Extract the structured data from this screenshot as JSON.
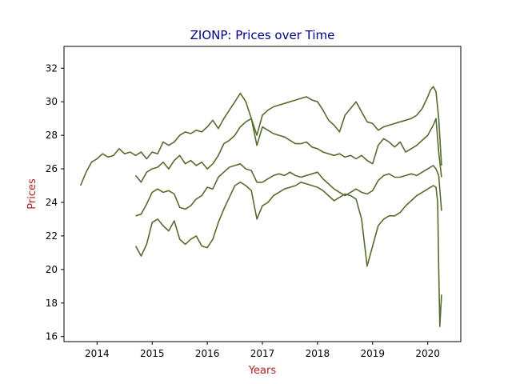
{
  "chart_data": {
    "type": "line",
    "title": "ZIONP: Prices over Time",
    "xlabel": "Years",
    "ylabel": "Prices",
    "xlim": [
      2013.4,
      2020.6
    ],
    "ylim": [
      15.7,
      33.3
    ],
    "xticks": [
      2014,
      2015,
      2016,
      2017,
      2018,
      2019,
      2020
    ],
    "yticks": [
      16,
      18,
      20,
      22,
      24,
      26,
      28,
      30,
      32
    ],
    "grid": false,
    "legend": "none",
    "colors": {
      "line": "#556b2f",
      "title": "#00008b",
      "axis_label": "#b22222"
    },
    "series": [
      {
        "points": [
          [
            2013.7,
            25.0
          ],
          [
            2013.8,
            25.8
          ],
          [
            2013.9,
            26.4
          ],
          [
            2014.0,
            26.6
          ],
          [
            2014.1,
            26.9
          ],
          [
            2014.2,
            26.7
          ],
          [
            2014.3,
            26.8
          ],
          [
            2014.4,
            27.2
          ],
          [
            2014.5,
            26.9
          ],
          [
            2014.6,
            27.0
          ],
          [
            2014.7,
            26.8
          ],
          [
            2014.8,
            27.0
          ],
          [
            2014.9,
            26.6
          ],
          [
            2015.0,
            27.0
          ],
          [
            2015.1,
            26.9
          ],
          [
            2015.2,
            27.6
          ],
          [
            2015.3,
            27.4
          ],
          [
            2015.4,
            27.6
          ],
          [
            2015.5,
            28.0
          ],
          [
            2015.6,
            28.2
          ],
          [
            2015.7,
            28.1
          ],
          [
            2015.8,
            28.3
          ],
          [
            2015.9,
            28.2
          ],
          [
            2016.0,
            28.5
          ],
          [
            2016.1,
            28.9
          ],
          [
            2016.2,
            28.4
          ],
          [
            2016.3,
            29.0
          ],
          [
            2016.4,
            29.5
          ],
          [
            2016.5,
            30.0
          ],
          [
            2016.6,
            30.5
          ],
          [
            2016.7,
            30.0
          ],
          [
            2016.8,
            29.0
          ],
          [
            2016.9,
            28.0
          ],
          [
            2017.0,
            29.2
          ],
          [
            2017.1,
            29.5
          ],
          [
            2017.2,
            29.7
          ],
          [
            2017.3,
            29.8
          ],
          [
            2017.4,
            29.9
          ],
          [
            2017.5,
            30.0
          ],
          [
            2017.6,
            30.1
          ],
          [
            2017.7,
            30.2
          ],
          [
            2017.8,
            30.3
          ],
          [
            2017.9,
            30.1
          ],
          [
            2018.0,
            30.0
          ],
          [
            2018.1,
            29.5
          ],
          [
            2018.2,
            28.9
          ],
          [
            2018.3,
            28.6
          ],
          [
            2018.4,
            28.2
          ],
          [
            2018.5,
            29.2
          ],
          [
            2018.6,
            29.6
          ],
          [
            2018.7,
            30.0
          ],
          [
            2018.8,
            29.4
          ],
          [
            2018.9,
            28.8
          ],
          [
            2019.0,
            28.7
          ],
          [
            2019.1,
            28.3
          ],
          [
            2019.2,
            28.5
          ],
          [
            2019.3,
            28.6
          ],
          [
            2019.4,
            28.7
          ],
          [
            2019.5,
            28.8
          ],
          [
            2019.6,
            28.9
          ],
          [
            2019.7,
            29.0
          ],
          [
            2019.8,
            29.2
          ],
          [
            2019.9,
            29.6
          ],
          [
            2020.0,
            30.3
          ],
          [
            2020.05,
            30.7
          ],
          [
            2020.1,
            30.9
          ],
          [
            2020.15,
            30.6
          ],
          [
            2020.2,
            29.0
          ],
          [
            2020.25,
            26.2
          ]
        ]
      },
      {
        "points": [
          [
            2014.7,
            25.6
          ],
          [
            2014.8,
            25.2
          ],
          [
            2014.9,
            25.8
          ],
          [
            2015.0,
            26.0
          ],
          [
            2015.1,
            26.1
          ],
          [
            2015.2,
            26.4
          ],
          [
            2015.3,
            26.0
          ],
          [
            2015.4,
            26.5
          ],
          [
            2015.5,
            26.8
          ],
          [
            2015.6,
            26.3
          ],
          [
            2015.7,
            26.5
          ],
          [
            2015.8,
            26.2
          ],
          [
            2015.9,
            26.4
          ],
          [
            2016.0,
            26.0
          ],
          [
            2016.1,
            26.3
          ],
          [
            2016.2,
            26.8
          ],
          [
            2016.3,
            27.5
          ],
          [
            2016.4,
            27.7
          ],
          [
            2016.5,
            28.0
          ],
          [
            2016.6,
            28.5
          ],
          [
            2016.7,
            28.8
          ],
          [
            2016.8,
            29.0
          ],
          [
            2016.9,
            27.4
          ],
          [
            2017.0,
            28.5
          ],
          [
            2017.1,
            28.3
          ],
          [
            2017.2,
            28.1
          ],
          [
            2017.3,
            28.0
          ],
          [
            2017.4,
            27.9
          ],
          [
            2017.5,
            27.7
          ],
          [
            2017.6,
            27.5
          ],
          [
            2017.7,
            27.5
          ],
          [
            2017.8,
            27.6
          ],
          [
            2017.9,
            27.3
          ],
          [
            2018.0,
            27.2
          ],
          [
            2018.1,
            27.0
          ],
          [
            2018.2,
            26.9
          ],
          [
            2018.3,
            26.8
          ],
          [
            2018.4,
            26.9
          ],
          [
            2018.5,
            26.7
          ],
          [
            2018.6,
            26.8
          ],
          [
            2018.7,
            26.6
          ],
          [
            2018.8,
            26.8
          ],
          [
            2018.9,
            26.5
          ],
          [
            2019.0,
            26.3
          ],
          [
            2019.1,
            27.4
          ],
          [
            2019.2,
            27.8
          ],
          [
            2019.3,
            27.6
          ],
          [
            2019.4,
            27.3
          ],
          [
            2019.5,
            27.6
          ],
          [
            2019.6,
            27.0
          ],
          [
            2019.7,
            27.2
          ],
          [
            2019.8,
            27.4
          ],
          [
            2019.9,
            27.7
          ],
          [
            2020.0,
            28.0
          ],
          [
            2020.05,
            28.3
          ],
          [
            2020.1,
            28.6
          ],
          [
            2020.15,
            29.0
          ],
          [
            2020.2,
            27.0
          ],
          [
            2020.25,
            25.5
          ]
        ]
      },
      {
        "points": [
          [
            2014.7,
            23.2
          ],
          [
            2014.8,
            23.3
          ],
          [
            2014.9,
            23.9
          ],
          [
            2015.0,
            24.6
          ],
          [
            2015.1,
            24.8
          ],
          [
            2015.2,
            24.6
          ],
          [
            2015.3,
            24.7
          ],
          [
            2015.4,
            24.5
          ],
          [
            2015.5,
            23.7
          ],
          [
            2015.6,
            23.6
          ],
          [
            2015.7,
            23.8
          ],
          [
            2015.8,
            24.2
          ],
          [
            2015.9,
            24.4
          ],
          [
            2016.0,
            24.9
          ],
          [
            2016.1,
            24.8
          ],
          [
            2016.2,
            25.5
          ],
          [
            2016.3,
            25.8
          ],
          [
            2016.4,
            26.1
          ],
          [
            2016.5,
            26.2
          ],
          [
            2016.6,
            26.3
          ],
          [
            2016.7,
            26.0
          ],
          [
            2016.8,
            25.9
          ],
          [
            2016.9,
            25.2
          ],
          [
            2017.0,
            25.2
          ],
          [
            2017.1,
            25.4
          ],
          [
            2017.2,
            25.6
          ],
          [
            2017.3,
            25.7
          ],
          [
            2017.4,
            25.6
          ],
          [
            2017.5,
            25.8
          ],
          [
            2017.6,
            25.6
          ],
          [
            2017.7,
            25.5
          ],
          [
            2017.8,
            25.6
          ],
          [
            2017.9,
            25.7
          ],
          [
            2018.0,
            25.8
          ],
          [
            2018.1,
            25.4
          ],
          [
            2018.2,
            25.1
          ],
          [
            2018.3,
            24.8
          ],
          [
            2018.4,
            24.6
          ],
          [
            2018.5,
            24.4
          ],
          [
            2018.6,
            24.6
          ],
          [
            2018.7,
            24.8
          ],
          [
            2018.8,
            24.6
          ],
          [
            2018.9,
            24.5
          ],
          [
            2019.0,
            24.7
          ],
          [
            2019.1,
            25.3
          ],
          [
            2019.2,
            25.6
          ],
          [
            2019.3,
            25.7
          ],
          [
            2019.4,
            25.5
          ],
          [
            2019.5,
            25.5
          ],
          [
            2019.6,
            25.6
          ],
          [
            2019.7,
            25.7
          ],
          [
            2019.8,
            25.6
          ],
          [
            2019.9,
            25.8
          ],
          [
            2020.0,
            26.0
          ],
          [
            2020.05,
            26.1
          ],
          [
            2020.1,
            26.2
          ],
          [
            2020.15,
            26.0
          ],
          [
            2020.2,
            25.6
          ],
          [
            2020.25,
            23.5
          ]
        ]
      },
      {
        "points": [
          [
            2014.7,
            21.4
          ],
          [
            2014.8,
            20.8
          ],
          [
            2014.9,
            21.5
          ],
          [
            2015.0,
            22.8
          ],
          [
            2015.1,
            23.0
          ],
          [
            2015.2,
            22.6
          ],
          [
            2015.3,
            22.3
          ],
          [
            2015.4,
            22.9
          ],
          [
            2015.5,
            21.8
          ],
          [
            2015.6,
            21.5
          ],
          [
            2015.7,
            21.8
          ],
          [
            2015.8,
            22.0
          ],
          [
            2015.9,
            21.4
          ],
          [
            2016.0,
            21.3
          ],
          [
            2016.1,
            21.8
          ],
          [
            2016.2,
            22.8
          ],
          [
            2016.3,
            23.6
          ],
          [
            2016.4,
            24.3
          ],
          [
            2016.5,
            25.0
          ],
          [
            2016.6,
            25.2
          ],
          [
            2016.7,
            25.0
          ],
          [
            2016.8,
            24.7
          ],
          [
            2016.9,
            23.0
          ],
          [
            2017.0,
            23.8
          ],
          [
            2017.1,
            24.0
          ],
          [
            2017.2,
            24.4
          ],
          [
            2017.3,
            24.6
          ],
          [
            2017.4,
            24.8
          ],
          [
            2017.5,
            24.9
          ],
          [
            2017.6,
            25.0
          ],
          [
            2017.7,
            25.2
          ],
          [
            2017.8,
            25.1
          ],
          [
            2017.9,
            25.0
          ],
          [
            2018.0,
            24.9
          ],
          [
            2018.1,
            24.7
          ],
          [
            2018.2,
            24.4
          ],
          [
            2018.3,
            24.1
          ],
          [
            2018.4,
            24.3
          ],
          [
            2018.5,
            24.5
          ],
          [
            2018.6,
            24.4
          ],
          [
            2018.7,
            24.2
          ],
          [
            2018.8,
            23.0
          ],
          [
            2018.9,
            20.2
          ],
          [
            2019.0,
            21.4
          ],
          [
            2019.1,
            22.6
          ],
          [
            2019.2,
            23.0
          ],
          [
            2019.3,
            23.2
          ],
          [
            2019.4,
            23.2
          ],
          [
            2019.5,
            23.4
          ],
          [
            2019.6,
            23.8
          ],
          [
            2019.7,
            24.1
          ],
          [
            2019.8,
            24.4
          ],
          [
            2019.9,
            24.6
          ],
          [
            2020.0,
            24.8
          ],
          [
            2020.05,
            24.9
          ],
          [
            2020.1,
            25.0
          ],
          [
            2020.15,
            24.9
          ],
          [
            2020.18,
            24.0
          ],
          [
            2020.2,
            20.0
          ],
          [
            2020.22,
            16.6
          ],
          [
            2020.25,
            18.5
          ]
        ]
      }
    ]
  }
}
